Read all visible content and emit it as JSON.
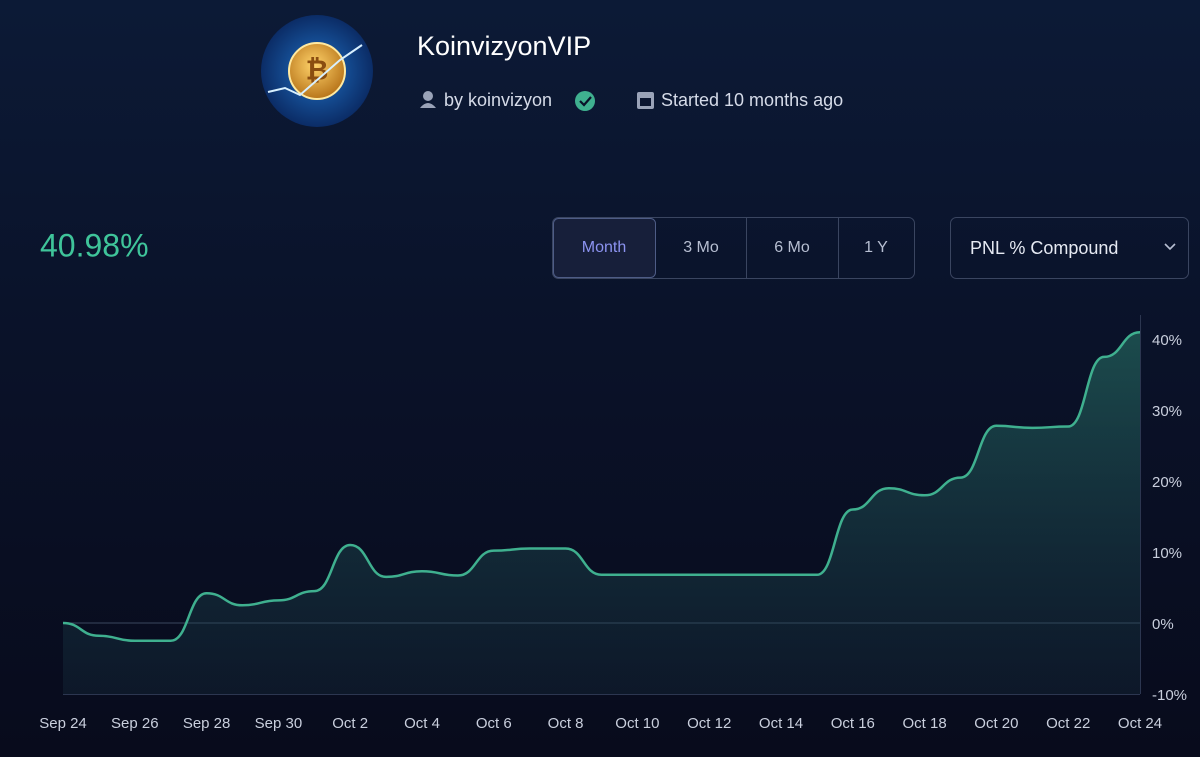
{
  "header": {
    "title": "KoinvizyonVIP",
    "author": "by koinvizyon",
    "started": "Started 10 months ago",
    "pnl": "40.98%",
    "ranges": [
      "Month",
      "3 Mo",
      "6 Mo",
      "1 Y"
    ],
    "metric": "PNL % Compound"
  },
  "chart_data": {
    "type": "area",
    "categories": [
      "Sep 24",
      null,
      "Sep 26",
      null,
      "Sep 28",
      null,
      "Sep 30",
      null,
      "Oct 2",
      null,
      "Oct 4",
      null,
      "Oct 6",
      null,
      "Oct 8",
      null,
      "Oct 10",
      null,
      "Oct 12",
      null,
      "Oct 14",
      null,
      "Oct 16",
      null,
      "Oct 18",
      null,
      "Oct 20",
      null,
      "Oct 22",
      null,
      "Oct 24"
    ],
    "values": [
      0,
      -1.8,
      -2.5,
      -2.5,
      4.2,
      2.5,
      3.2,
      4.5,
      11,
      6.5,
      7.3,
      6.7,
      10.2,
      10.5,
      10.5,
      6.8,
      6.8,
      6.8,
      6.8,
      6.8,
      6.8,
      6.8,
      16,
      19,
      18,
      20.5,
      27.8,
      27.5,
      27.7,
      37.5,
      40.98
    ],
    "color": "#3fb08f",
    "ylim": [
      -10,
      42
    ],
    "yticks": [
      {
        "value": -10,
        "label": "-10%"
      },
      {
        "value": 0,
        "label": "0%"
      },
      {
        "value": 10,
        "label": "10%"
      },
      {
        "value": 20,
        "label": "20%"
      },
      {
        "value": 30,
        "label": "30%"
      },
      {
        "value": 40,
        "label": "40%"
      }
    ],
    "zero_line": true
  }
}
